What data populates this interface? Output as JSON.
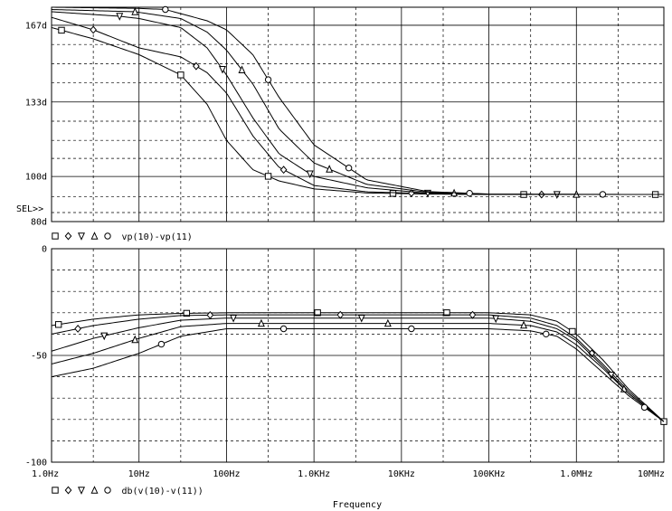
{
  "colors": {
    "background": "#ffffff",
    "ink": "#000000"
  },
  "xlabel": "Frequency",
  "x_ticks": [
    {
      "f": 1,
      "label": "1.0Hz"
    },
    {
      "f": 10,
      "label": "10Hz"
    },
    {
      "f": 100,
      "label": "100Hz"
    },
    {
      "f": 1000,
      "label": "1.0KHz"
    },
    {
      "f": 10000,
      "label": "10KHz"
    },
    {
      "f": 100000,
      "label": "100KHz"
    },
    {
      "f": 1000000,
      "label": "1.0MHz"
    },
    {
      "f": 10000000,
      "label": "10MHz"
    }
  ],
  "chart_data": [
    {
      "type": "line",
      "id": "phase",
      "x_scale": "log",
      "xlim": [
        1,
        10000000
      ],
      "ylim": [
        80,
        175
      ],
      "y_ticks": [
        {
          "v": 167,
          "label": "167d"
        },
        {
          "v": 133,
          "label": "133d"
        },
        {
          "v": 100,
          "label": "100d"
        },
        {
          "v": 80,
          "label": "80d"
        }
      ],
      "selection_marker": "SEL>>",
      "legend_markers": [
        "square",
        "diamond",
        "triangle-down",
        "triangle",
        "circle"
      ],
      "legend_text": "vp(10)-vp(11)",
      "grid": true,
      "x_min_grid": [
        3,
        30,
        300,
        3000,
        30000,
        300000,
        3000000
      ],
      "series": [
        {
          "marker": "square",
          "marker_x": [
            1.3,
            30,
            300,
            8000,
            250000,
            8000000
          ],
          "points": [
            [
              1,
              166
            ],
            [
              3,
              161
            ],
            [
              10,
              154
            ],
            [
              30,
              145
            ],
            [
              60,
              132
            ],
            [
              100,
              116
            ],
            [
              200,
              103
            ],
            [
              400,
              98
            ],
            [
              1000,
              94.5
            ],
            [
              4000,
              92.7
            ],
            [
              20000,
              92.2
            ],
            [
              100000,
              92
            ],
            [
              10000000,
              92
            ]
          ]
        },
        {
          "marker": "diamond",
          "marker_x": [
            3,
            45,
            450,
            13000,
            400000
          ],
          "points": [
            [
              1,
              170.5
            ],
            [
              3,
              165
            ],
            [
              10,
              157
            ],
            [
              30,
              153
            ],
            [
              60,
              146
            ],
            [
              100,
              137
            ],
            [
              200,
              118
            ],
            [
              400,
              104
            ],
            [
              1000,
              96
            ],
            [
              4000,
              93.2
            ],
            [
              20000,
              92.4
            ],
            [
              100000,
              92
            ],
            [
              10000000,
              92
            ]
          ]
        },
        {
          "marker": "triangle-down",
          "marker_x": [
            6,
            90,
            900,
            20000,
            600000
          ],
          "points": [
            [
              1,
              173
            ],
            [
              6,
              171
            ],
            [
              10,
              170
            ],
            [
              30,
              166
            ],
            [
              60,
              157
            ],
            [
              100,
              145
            ],
            [
              200,
              126
            ],
            [
              400,
              110
            ],
            [
              1000,
              100
            ],
            [
              4000,
              95
            ],
            [
              20000,
              92.6
            ],
            [
              100000,
              92
            ],
            [
              10000000,
              92
            ]
          ]
        },
        {
          "marker": "triangle",
          "marker_x": [
            9,
            150,
            1500,
            40000,
            1000000
          ],
          "points": [
            [
              1,
              174
            ],
            [
              9,
              173
            ],
            [
              30,
              170
            ],
            [
              60,
              164
            ],
            [
              100,
              156
            ],
            [
              200,
              141
            ],
            [
              400,
              121
            ],
            [
              1000,
              106
            ],
            [
              4000,
              96.5
            ],
            [
              20000,
              93
            ],
            [
              100000,
              92.1
            ],
            [
              10000000,
              92
            ]
          ]
        },
        {
          "marker": "circle",
          "marker_x": [
            20,
            300,
            2500,
            60000,
            2000000
          ],
          "points": [
            [
              1,
              175
            ],
            [
              10,
              174.5
            ],
            [
              20,
              174
            ],
            [
              60,
              169
            ],
            [
              100,
              165
            ],
            [
              200,
              154
            ],
            [
              400,
              135
            ],
            [
              1000,
              114
            ],
            [
              4000,
              98.5
            ],
            [
              20000,
              93.3
            ],
            [
              100000,
              92.2
            ],
            [
              10000000,
              92
            ]
          ]
        }
      ]
    },
    {
      "type": "line",
      "id": "magnitude",
      "x_scale": "log",
      "xlim": [
        1,
        10000000
      ],
      "ylim": [
        -100,
        0
      ],
      "y_ticks": [
        {
          "v": 0,
          "label": "0"
        },
        {
          "v": -50,
          "label": "-50"
        },
        {
          "v": -100,
          "label": "-100"
        }
      ],
      "legend_markers": [
        "square",
        "diamond",
        "triangle-down",
        "triangle",
        "circle"
      ],
      "legend_text": "db(v(10)-v(11))",
      "grid": true,
      "x_min_grid": [
        3,
        30,
        300,
        3000,
        30000,
        300000,
        3000000
      ],
      "y_min_grid": [
        -10,
        -20,
        -30,
        -40,
        -60,
        -70,
        -80,
        -90
      ],
      "series": [
        {
          "marker": "square",
          "marker_x": [
            1.2,
            35,
            1100,
            33000,
            900000,
            10000000
          ],
          "points": [
            [
              1,
              -36
            ],
            [
              3,
              -33
            ],
            [
              10,
              -31
            ],
            [
              30,
              -30.3
            ],
            [
              100,
              -30
            ],
            [
              100000,
              -30
            ],
            [
              300000,
              -31
            ],
            [
              600000,
              -34
            ],
            [
              1000000,
              -40
            ],
            [
              2000000,
              -52
            ],
            [
              4000000,
              -66
            ],
            [
              10000000,
              -81
            ]
          ]
        },
        {
          "marker": "diamond",
          "marker_x": [
            2,
            65,
            2000,
            65000,
            1500000
          ],
          "points": [
            [
              1,
              -40
            ],
            [
              3,
              -36
            ],
            [
              10,
              -33
            ],
            [
              30,
              -31.3
            ],
            [
              100,
              -31
            ],
            [
              100000,
              -31
            ],
            [
              300000,
              -32.5
            ],
            [
              600000,
              -36
            ],
            [
              1000000,
              -42
            ],
            [
              2000000,
              -54
            ],
            [
              4000000,
              -67
            ],
            [
              10000000,
              -81
            ]
          ]
        },
        {
          "marker": "triangle-down",
          "marker_x": [
            4,
            120,
            3500,
            120000,
            2500000
          ],
          "points": [
            [
              1,
              -48
            ],
            [
              3,
              -42
            ],
            [
              10,
              -37
            ],
            [
              30,
              -33.5
            ],
            [
              100,
              -32.5
            ],
            [
              100000,
              -32.5
            ],
            [
              300000,
              -34
            ],
            [
              600000,
              -37.5
            ],
            [
              1000000,
              -43
            ],
            [
              2000000,
              -55
            ],
            [
              4000000,
              -68
            ],
            [
              10000000,
              -81
            ]
          ]
        },
        {
          "marker": "triangle",
          "marker_x": [
            9,
            250,
            7000,
            250000,
            3500000
          ],
          "points": [
            [
              1,
              -54
            ],
            [
              3,
              -49
            ],
            [
              10,
              -42
            ],
            [
              30,
              -36.5
            ],
            [
              100,
              -35
            ],
            [
              100000,
              -35
            ],
            [
              300000,
              -36
            ],
            [
              600000,
              -39
            ],
            [
              1000000,
              -45
            ],
            [
              2000000,
              -56
            ],
            [
              4000000,
              -68
            ],
            [
              10000000,
              -81
            ]
          ]
        },
        {
          "marker": "circle",
          "marker_x": [
            18,
            450,
            13000,
            450000,
            6000000
          ],
          "points": [
            [
              1,
              -60
            ],
            [
              3,
              -56
            ],
            [
              10,
              -49
            ],
            [
              30,
              -41
            ],
            [
              100,
              -37.5
            ],
            [
              100000,
              -37.5
            ],
            [
              300000,
              -38.5
            ],
            [
              600000,
              -41
            ],
            [
              1000000,
              -47
            ],
            [
              2000000,
              -58
            ],
            [
              4000000,
              -69
            ],
            [
              10000000,
              -81
            ]
          ]
        }
      ]
    }
  ]
}
